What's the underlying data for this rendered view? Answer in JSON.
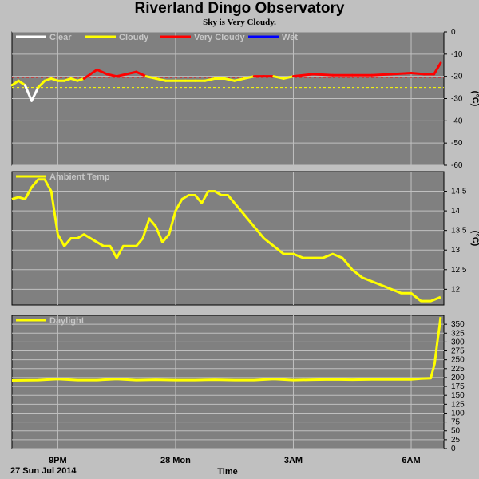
{
  "title": "Riverland Dingo Observatory",
  "subtitle": "Sky is Very Cloudy.",
  "colors": {
    "panel": "#808080",
    "grid": "#c0c0c0",
    "clear": "#ffffff",
    "cloudy": "#ffff00",
    "very_cloudy": "#ff0000",
    "wet": "#0000ff"
  },
  "x_axis": {
    "label": "Time",
    "date_label": "27 Sun Jul 2014",
    "ticks": [
      "9PM",
      "28 Mon",
      "3AM",
      "6AM"
    ]
  },
  "chart_data": [
    {
      "type": "line",
      "panel": "sky",
      "ylabel": "(°C)",
      "ylim": [
        -60,
        0
      ],
      "yticks": [
        0,
        -10,
        -20,
        -30,
        -40,
        -50,
        -60
      ],
      "legend": [
        "Clear",
        "Cloudy",
        "Very Cloudy",
        "Wet"
      ],
      "thresholds": [
        {
          "name": "Very Cloudy",
          "value": -20.5
        },
        {
          "name": "Cloudy",
          "value": -25
        }
      ],
      "x": [
        "19:50",
        "20:00",
        "20:10",
        "20:20",
        "20:30",
        "20:40",
        "20:50",
        "21:00",
        "21:10",
        "21:20",
        "21:30",
        "21:40",
        "21:50",
        "22:00",
        "22:15",
        "22:30",
        "22:45",
        "23:00",
        "23:15",
        "23:30",
        "23:45",
        "00:00",
        "00:15",
        "00:30",
        "00:45",
        "01:00",
        "01:15",
        "01:30",
        "01:45",
        "02:00",
        "02:15",
        "02:30",
        "02:45",
        "03:00",
        "03:30",
        "04:00",
        "04:30",
        "05:00",
        "05:30",
        "06:00",
        "06:20",
        "06:35",
        "06:45"
      ],
      "series": [
        {
          "name": "Sky",
          "values": [
            -24,
            -22,
            -24,
            -31,
            -25,
            -22,
            -21,
            -22,
            -22,
            -21,
            -22,
            -21,
            -19,
            -17,
            -19,
            -20,
            -19,
            -18,
            -20,
            -21,
            -22,
            -22,
            -22,
            -22,
            -22,
            -21,
            -21,
            -22,
            -21,
            -20,
            -20,
            -20,
            -21,
            -20,
            -19,
            -19.5,
            -19.5,
            -19.5,
            -19,
            -18.5,
            -19,
            -19,
            -14
          ]
        }
      ]
    },
    {
      "type": "line",
      "panel": "ambient",
      "ylabel": "(°C)",
      "ylim": [
        11.6,
        15.0
      ],
      "yticks": [
        12.0,
        12.5,
        13.0,
        13.5,
        14.0,
        14.5
      ],
      "legend": [
        "Ambient Temp"
      ],
      "x": [
        "19:50",
        "20:00",
        "20:10",
        "20:20",
        "20:30",
        "20:40",
        "20:50",
        "21:00",
        "21:10",
        "21:20",
        "21:30",
        "21:40",
        "21:50",
        "22:00",
        "22:10",
        "22:20",
        "22:30",
        "22:40",
        "22:50",
        "23:00",
        "23:10",
        "23:20",
        "23:30",
        "23:40",
        "23:50",
        "00:00",
        "00:10",
        "00:20",
        "00:30",
        "00:40",
        "00:50",
        "01:00",
        "01:10",
        "01:20",
        "01:30",
        "01:45",
        "02:00",
        "02:15",
        "02:30",
        "02:45",
        "03:00",
        "03:15",
        "03:30",
        "03:45",
        "04:00",
        "04:15",
        "04:30",
        "04:45",
        "05:00",
        "05:15",
        "05:30",
        "05:45",
        "06:00",
        "06:15",
        "06:30",
        "06:45"
      ],
      "series": [
        {
          "name": "Ambient Temp",
          "values": [
            14.3,
            14.35,
            14.3,
            14.6,
            14.8,
            14.8,
            14.5,
            13.4,
            13.1,
            13.3,
            13.3,
            13.4,
            13.3,
            13.2,
            13.1,
            13.1,
            12.8,
            13.1,
            13.1,
            13.1,
            13.3,
            13.8,
            13.6,
            13.2,
            13.4,
            14.0,
            14.3,
            14.4,
            14.4,
            14.2,
            14.5,
            14.5,
            14.4,
            14.4,
            14.2,
            13.9,
            13.6,
            13.3,
            13.1,
            12.9,
            12.9,
            12.8,
            12.8,
            12.8,
            12.9,
            12.8,
            12.5,
            12.3,
            12.2,
            12.1,
            12.0,
            11.9,
            11.9,
            11.7,
            11.7,
            11.8
          ]
        }
      ]
    },
    {
      "type": "line",
      "panel": "daylight",
      "ylabel": "",
      "ylim": [
        0,
        375
      ],
      "yticks": [
        0,
        25,
        50,
        75,
        100,
        125,
        150,
        175,
        200,
        225,
        250,
        275,
        300,
        325,
        350
      ],
      "legend": [
        "Daylight"
      ],
      "x": [
        "19:50",
        "20:30",
        "21:00",
        "21:30",
        "22:00",
        "22:30",
        "23:00",
        "23:30",
        "00:00",
        "00:30",
        "01:00",
        "01:30",
        "02:00",
        "02:30",
        "03:00",
        "03:30",
        "04:00",
        "04:30",
        "05:00",
        "05:30",
        "06:00",
        "06:15",
        "06:30",
        "06:36",
        "06:40",
        "06:43",
        "06:45"
      ],
      "series": [
        {
          "name": "Daylight",
          "values": [
            192,
            193,
            196,
            193,
            193,
            196,
            193,
            194,
            193,
            193,
            194,
            193,
            193,
            196,
            193,
            194,
            195,
            194,
            195,
            195,
            195,
            197,
            198,
            240,
            300,
            340,
            370
          ]
        }
      ]
    }
  ]
}
